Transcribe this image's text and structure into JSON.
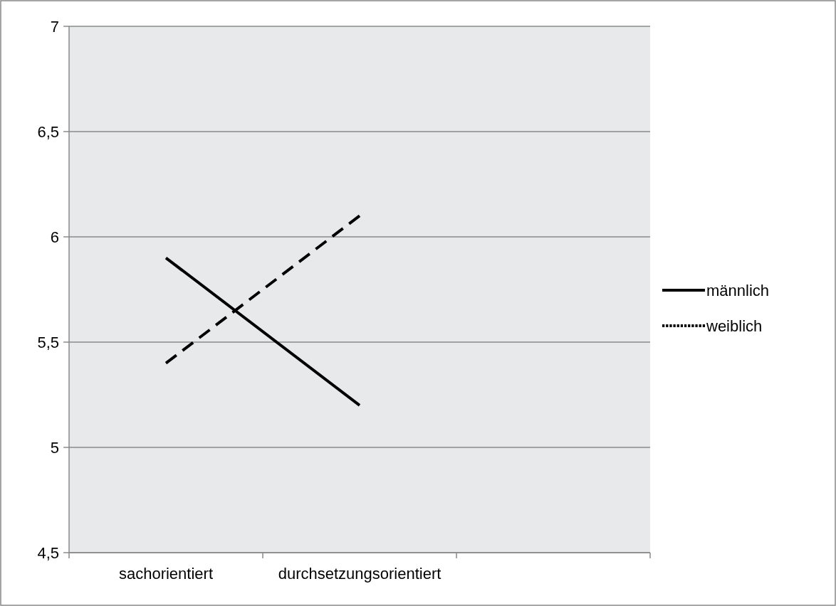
{
  "chart_data": {
    "type": "line",
    "categories": [
      "sachorientiert",
      "durchsetzungsorientiert",
      null
    ],
    "series": [
      {
        "name": "männlich",
        "color": "#000000",
        "line_style": "solid",
        "values": [
          5.9,
          5.2,
          null
        ]
      },
      {
        "name": "weiblich",
        "color": "#000000",
        "line_style": "dashed",
        "values": [
          5.4,
          6.1,
          null
        ]
      }
    ],
    "ylim": [
      4.5,
      7
    ],
    "yticks": [
      {
        "value": 4.5,
        "label": "4,5"
      },
      {
        "value": 5,
        "label": "5"
      },
      {
        "value": 5.5,
        "label": "5,5"
      },
      {
        "value": 6,
        "label": "6"
      },
      {
        "value": 6.5,
        "label": "6,5"
      },
      {
        "value": 7,
        "label": "7"
      }
    ],
    "grid": "y",
    "legend": "right",
    "marker": "none"
  }
}
